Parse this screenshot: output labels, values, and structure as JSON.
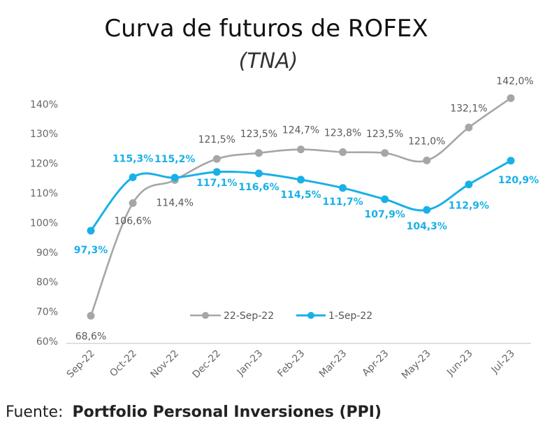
{
  "chart_data": {
    "type": "line",
    "title": "Curva de futuros de ROFEX",
    "subtitle": "(TNA)",
    "categories": [
      "Sep-22",
      "Oct-22",
      "Nov-22",
      "Dec-22",
      "Jan-23",
      "Feb-23",
      "Mar-23",
      "Apr-23",
      "May-23",
      "Jun-23",
      "Jul-23"
    ],
    "y_ticks": [
      "60%",
      "70%",
      "80%",
      "90%",
      "100%",
      "110%",
      "120%",
      "130%",
      "140%"
    ],
    "ylim": [
      60,
      142
    ],
    "grid": false,
    "legend_position": "bottom-center",
    "series": [
      {
        "name": "22-Sep-22",
        "color": "#a6a6a6",
        "values": [
          68.6,
          106.6,
          114.4,
          121.5,
          123.5,
          124.7,
          123.8,
          123.5,
          121.0,
          132.1,
          142.0
        ],
        "labels": [
          "68,6%",
          "106,6%",
          "114,4%",
          "121,5%",
          "123,5%",
          "124,7%",
          "123,8%",
          "123,5%",
          "121,0%",
          "132,1%",
          "142,0%"
        ]
      },
      {
        "name": "1-Sep-22",
        "color": "#19b0e8",
        "values": [
          97.3,
          115.3,
          115.2,
          117.1,
          116.6,
          114.5,
          111.7,
          107.9,
          104.3,
          112.9,
          120.9
        ],
        "labels": [
          "97,3%",
          "115,3%",
          "115,2%",
          "117,1%",
          "116,6%",
          "114,5%",
          "111,7%",
          "107,9%",
          "104,3%",
          "112,9%",
          "120,9%"
        ]
      }
    ]
  },
  "source": {
    "prefix": "Fuente:",
    "name": "Portfolio Personal Inversiones (PPI)"
  }
}
